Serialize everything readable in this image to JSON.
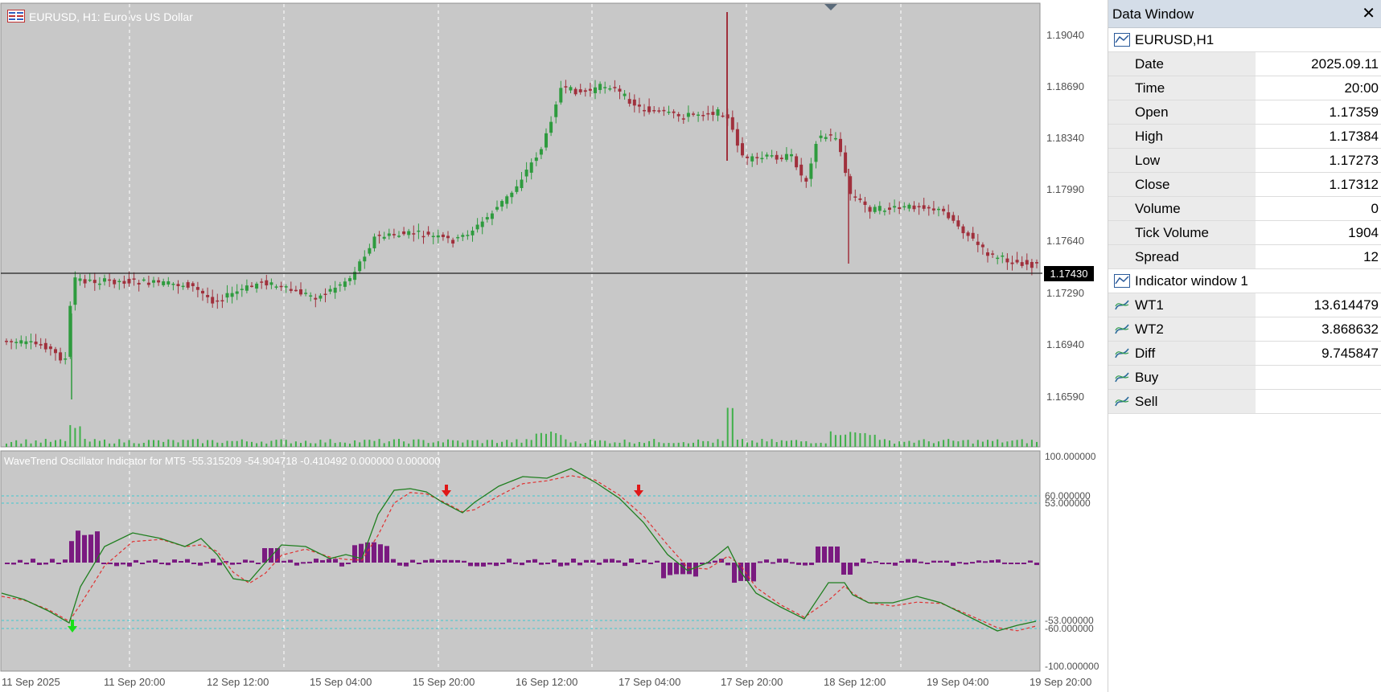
{
  "chart": {
    "title": "EURUSD, H1:  Euro vs US Dollar",
    "oscillator_title": "WaveTrend Oscillator Indicator for MT5 -55.315209 -54.904718 -0.410492 0.000000 0.000000",
    "current_price": "1.17430",
    "price_axis_labels": [
      "1.19040",
      "1.18690",
      "1.18340",
      "1.17990",
      "1.17640",
      "1.17290",
      "1.16940",
      "1.16590"
    ],
    "osc_axis_labels": [
      "100.000000",
      "60.000000",
      "53.000000",
      "-53.000000",
      "-60.000000",
      "-100.000000"
    ],
    "time_axis_labels": [
      "11 Sep 2025",
      "11 Sep 20:00",
      "12 Sep 12:00",
      "15 Sep 04:00",
      "15 Sep 20:00",
      "16 Sep 12:00",
      "17 Sep 04:00",
      "17 Sep 20:00",
      "18 Sep 12:00",
      "19 Sep 04:00",
      "19 Sep 20:00"
    ],
    "colors": {
      "background": "#c8c8c8",
      "bull": "#2e9b3e",
      "bear": "#a0303c",
      "grid": "#ffffff",
      "wt1": "#1f7f1f",
      "wt2": "#e03030",
      "histogram": "#7a1a80",
      "levels": "#40c8d0",
      "volume": "#3fb04a"
    }
  },
  "data_window": {
    "title": "Data Window",
    "close_label": "✕",
    "symbol_section": "EURUSD,H1",
    "rows": [
      {
        "label": "Date",
        "value": "2025.09.11"
      },
      {
        "label": "Time",
        "value": "20:00"
      },
      {
        "label": "Open",
        "value": "1.17359"
      },
      {
        "label": "High",
        "value": "1.17384"
      },
      {
        "label": "Low",
        "value": "1.17273"
      },
      {
        "label": "Close",
        "value": "1.17312"
      },
      {
        "label": "Volume",
        "value": "0"
      },
      {
        "label": "Tick Volume",
        "value": "1904"
      },
      {
        "label": "Spread",
        "value": "12"
      }
    ],
    "indicator_section": "Indicator window 1",
    "indicator_rows": [
      {
        "label": "WT1",
        "value": "13.614479"
      },
      {
        "label": "WT2",
        "value": "3.868632"
      },
      {
        "label": "Diff",
        "value": "9.745847"
      },
      {
        "label": "Buy",
        "value": ""
      },
      {
        "label": "Sell",
        "value": ""
      }
    ]
  }
}
